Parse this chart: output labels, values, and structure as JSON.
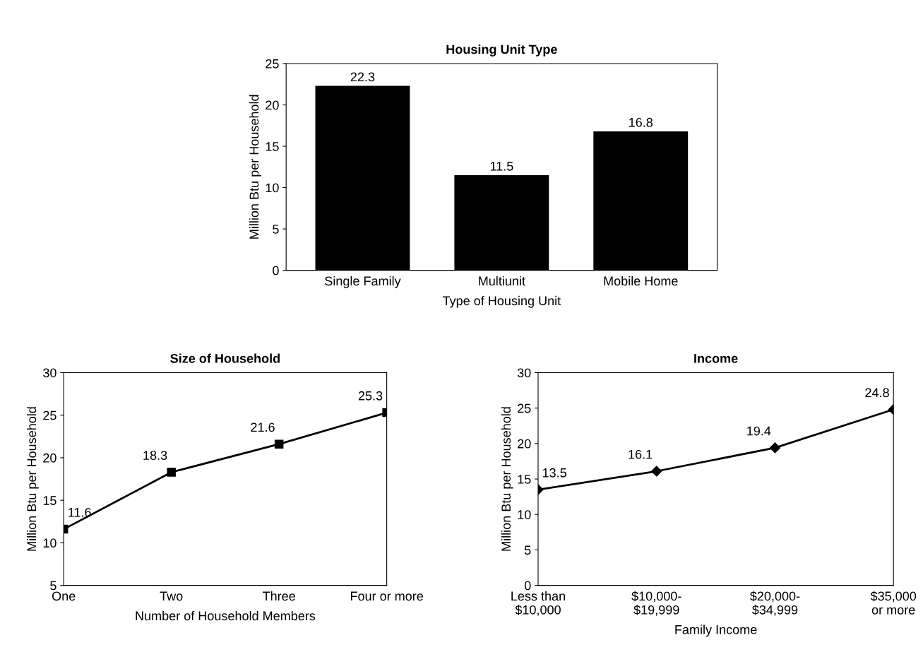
{
  "chart_data": [
    {
      "type": "bar",
      "title": "Housing Unit Type",
      "xlabel": "Type of Housing Unit",
      "ylabel": "Million Btu per Household",
      "categories": [
        "Single Family",
        "Multiunit",
        "Mobile Home"
      ],
      "values": [
        22.3,
        11.5,
        16.8
      ],
      "color": "#000000",
      "ylim": [
        0,
        25
      ],
      "yticks": [
        0,
        5,
        10,
        15,
        20,
        25
      ],
      "data_labels": true,
      "grid": false,
      "legend": false
    },
    {
      "type": "line",
      "title": "Size of Household",
      "xlabel": "Number of Household Members",
      "ylabel": "Million Btu per Household",
      "categories": [
        "One",
        "Two",
        "Three",
        "Four or more"
      ],
      "values": [
        11.6,
        18.3,
        21.6,
        25.3
      ],
      "color": "#000000",
      "marker": "square",
      "line_style": "solid",
      "ylim": [
        5,
        30
      ],
      "yticks": [
        5,
        10,
        15,
        20,
        25,
        30
      ],
      "data_labels": true,
      "grid": false,
      "legend": false
    },
    {
      "type": "line",
      "title": "Income",
      "xlabel": "Family Income",
      "ylabel": "Million Btu per Household",
      "categories": [
        "Less than\n$10,000",
        "$10,000-\n$19,999",
        "$20,000-\n$34,999",
        "$35,000\nor more"
      ],
      "values": [
        13.5,
        16.1,
        19.4,
        24.8
      ],
      "color": "#000000",
      "marker": "diamond",
      "line_style": "solid",
      "ylim": [
        0,
        30
      ],
      "yticks": [
        0,
        5,
        10,
        15,
        20,
        25,
        30
      ],
      "data_labels": true,
      "grid": false,
      "legend": false
    }
  ]
}
